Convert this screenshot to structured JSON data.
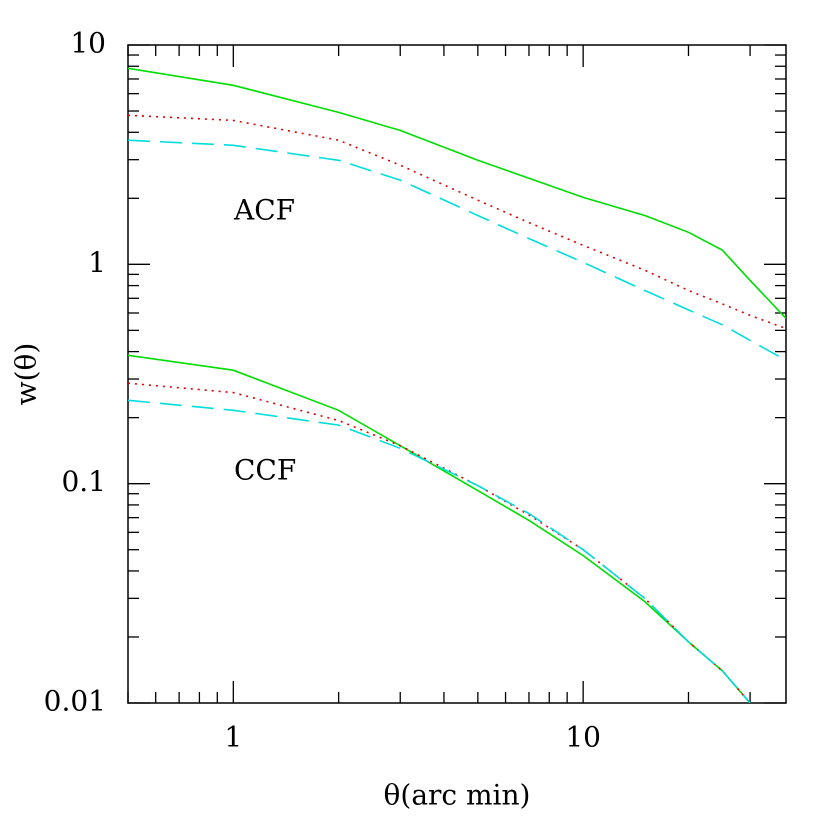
{
  "chart_data": {
    "type": "line",
    "xlabel": "θ(arc min)",
    "ylabel": "w(θ)",
    "xscale": "log",
    "yscale": "log",
    "xlim": [
      0.5,
      38
    ],
    "ylim": [
      0.01,
      10
    ],
    "xticks": [
      1,
      10
    ],
    "yticks": [
      0.01,
      0.1,
      1,
      10
    ],
    "xminorticks": [
      0.5,
      0.6,
      0.7,
      0.8,
      0.9,
      2,
      3,
      4,
      5,
      6,
      7,
      8,
      9,
      20,
      30
    ],
    "yminorticks": [
      0.02,
      0.03,
      0.04,
      0.05,
      0.06,
      0.07,
      0.08,
      0.09,
      0.2,
      0.3,
      0.4,
      0.5,
      0.6,
      0.7,
      0.8,
      0.9,
      2,
      3,
      4,
      5,
      6,
      7,
      8,
      9
    ],
    "annotations": [
      {
        "text": "ACF",
        "color": "#00dd00"
      },
      {
        "text": "CCF",
        "color": "#00dd00"
      }
    ],
    "x": [
      0.5,
      1,
      2,
      3,
      5,
      7,
      10,
      15,
      20,
      25,
      30,
      38
    ],
    "series": [
      {
        "color": "#00dd00",
        "style": "solid",
        "values": [
          7.83,
          6.55,
          4.93,
          4.08,
          2.98,
          2.47,
          2.02,
          1.67,
          1.4,
          1.16,
          0.845,
          0.567
        ]
      },
      {
        "color": "#dd0000",
        "style": "dotted",
        "values": [
          4.78,
          4.53,
          3.68,
          2.83,
          1.96,
          1.55,
          1.22,
          0.94,
          0.76,
          0.66,
          0.585,
          0.51
        ]
      },
      {
        "color": "#00dddd",
        "style": "dashed",
        "values": [
          3.68,
          3.49,
          2.98,
          2.42,
          1.67,
          1.31,
          1.02,
          0.76,
          0.62,
          0.53,
          0.45,
          0.365
        ]
      },
      {
        "color": "#00dd00",
        "style": "solid",
        "values": [
          0.385,
          0.329,
          0.216,
          0.149,
          0.093,
          0.068,
          0.047,
          0.029,
          0.019,
          0.014,
          0.01,
          null
        ]
      },
      {
        "color": "#dd0000",
        "style": "dotted",
        "values": [
          0.287,
          0.26,
          0.194,
          0.149,
          0.098,
          0.072,
          0.05,
          0.03,
          0.019,
          0.014,
          0.01,
          null
        ]
      },
      {
        "color": "#00dddd",
        "style": "dashed",
        "values": [
          0.24,
          0.216,
          0.185,
          0.145,
          0.098,
          0.073,
          0.05,
          0.03,
          0.019,
          0.014,
          0.01,
          null
        ]
      }
    ]
  }
}
